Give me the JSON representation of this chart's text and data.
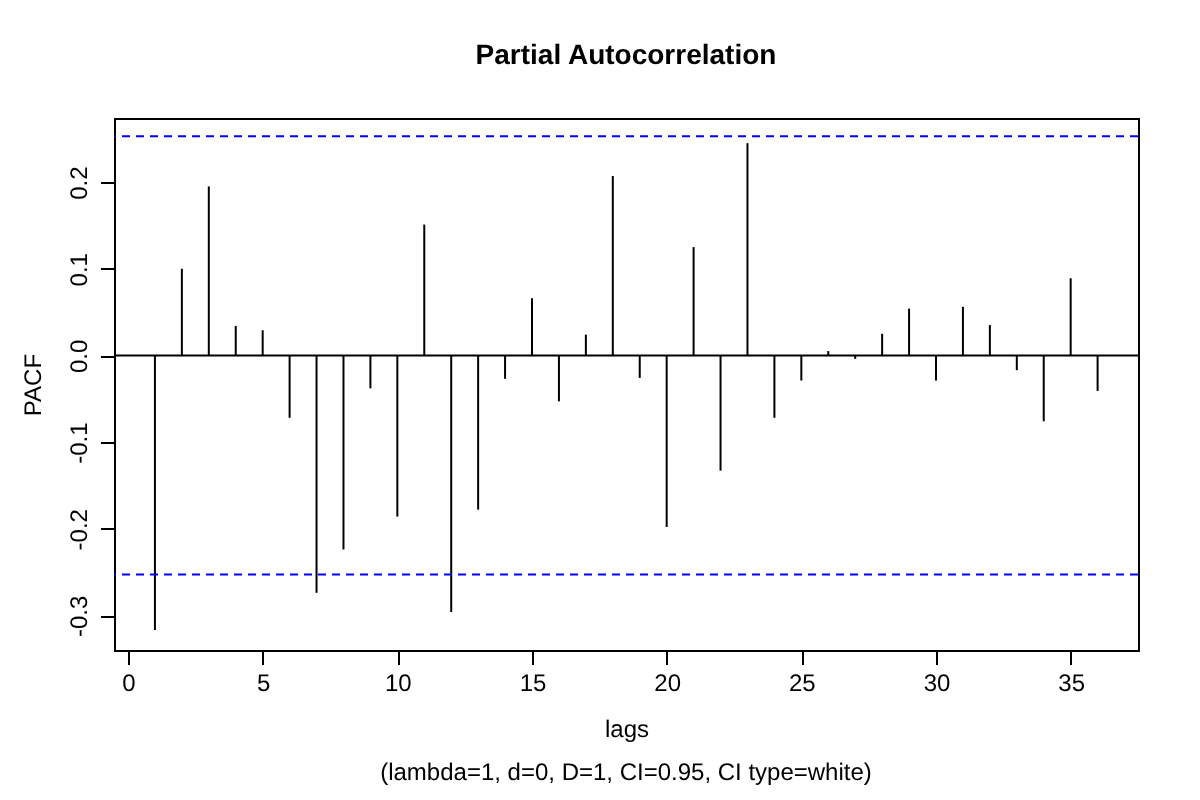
{
  "chart_data": {
    "type": "bar",
    "title": "Partial Autocorrelation",
    "xlabel": "lags",
    "ylabel": "PACF",
    "annotations": [
      "(lambda=1, d=0, D=1, CI=0.95, CI type=white)"
    ],
    "x": [
      1,
      2,
      3,
      4,
      5,
      6,
      7,
      8,
      9,
      10,
      11,
      12,
      13,
      14,
      15,
      16,
      17,
      18,
      19,
      20,
      21,
      22,
      23,
      24,
      25,
      26,
      27,
      28,
      29,
      30,
      31,
      32,
      33,
      34,
      35,
      36
    ],
    "series": [
      {
        "color": "#000000",
        "values": [
          -0.317,
          0.1,
          0.195,
          0.034,
          0.029,
          -0.072,
          -0.274,
          -0.224,
          -0.038,
          -0.186,
          0.151,
          -0.296,
          -0.178,
          -0.027,
          0.066,
          -0.053,
          0.024,
          0.207,
          -0.026,
          -0.198,
          0.125,
          -0.133,
          0.245,
          -0.072,
          -0.029,
          0.005,
          -0.004,
          0.025,
          0.054,
          -0.029,
          0.056,
          0.035,
          -0.017,
          -0.076,
          0.089,
          -0.041
        ]
      }
    ],
    "xlim": [
      -0.52,
      37.5
    ],
    "xticks": [
      0,
      5,
      10,
      15,
      20,
      25,
      30,
      35
    ],
    "ylim": [
      -0.34,
      0.274
    ],
    "yticks": [
      {
        "value": -0.3,
        "label": "-0.3"
      },
      {
        "value": -0.2,
        "label": "-0.2"
      },
      {
        "value": -0.1,
        "label": "-0.1"
      },
      {
        "value": 0,
        "label": "0.0"
      },
      {
        "value": 0.1,
        "label": "0.1"
      },
      {
        "value": 0.2,
        "label": "0.2"
      }
    ],
    "ref_lines": [
      {
        "axis": "y",
        "value": 0.253,
        "color": "#0000ff",
        "line_style": "dashed"
      },
      {
        "axis": "y",
        "value": -0.253,
        "color": "#0000ff",
        "line_style": "dashed"
      },
      {
        "axis": "y",
        "value": 0,
        "color": "#000000",
        "line_style": "solid"
      }
    ],
    "grid": false
  }
}
